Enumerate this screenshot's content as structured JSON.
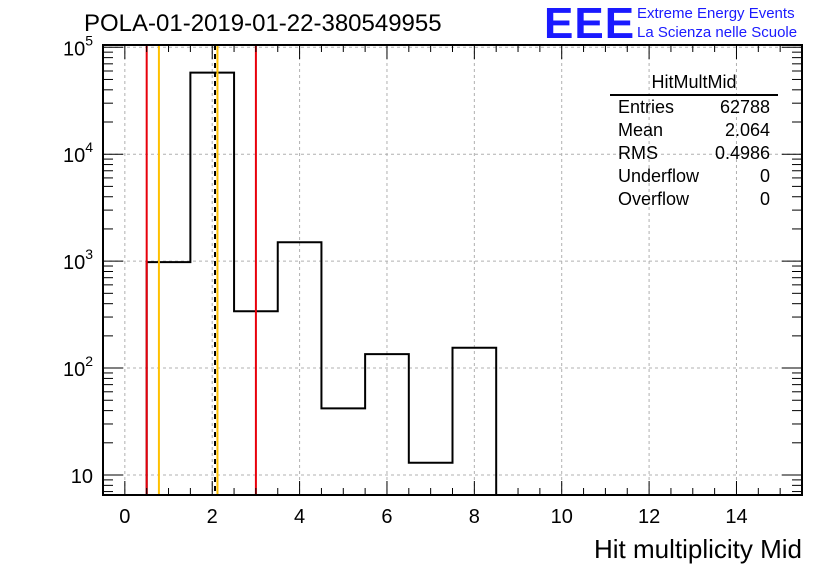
{
  "header": {
    "title": "POLA-01-2019-01-22-380549955"
  },
  "logo": {
    "mark": "EEE",
    "line1": "Extreme Energy Events",
    "line2": "La Scienza nelle Scuole",
    "color": "#1a1aff"
  },
  "stats": {
    "name": "HitMultMid",
    "rows": [
      {
        "label": "Entries",
        "value": "62788"
      },
      {
        "label": "Mean",
        "value": "2.064"
      },
      {
        "label": "RMS",
        "value": "0.4986"
      },
      {
        "label": "Underflow",
        "value": "0"
      },
      {
        "label": "Overflow",
        "value": "0"
      }
    ]
  },
  "chart_data": {
    "type": "bar",
    "histogram": true,
    "xlabel": "Hit multiplicity Mid",
    "xlim": [
      -0.5,
      15.5
    ],
    "ylim": [
      6.5,
      105000
    ],
    "yscale": "log",
    "grid": true,
    "bin_edges": [
      0.5,
      1.5,
      2.5,
      3.5,
      4.5,
      5.5,
      6.5,
      7.5,
      8.5
    ],
    "values": [
      980,
      58000,
      340,
      1500,
      42,
      135,
      13,
      155
    ],
    "x_ticks": [
      "0",
      "2",
      "4",
      "6",
      "8",
      "10",
      "12",
      "14"
    ],
    "x_tick_values": [
      0,
      2,
      4,
      6,
      8,
      10,
      12,
      14
    ],
    "y_ticks": [
      {
        "value": 10,
        "base": "10",
        "exp": ""
      },
      {
        "value": 100,
        "base": "10",
        "exp": "2"
      },
      {
        "value": 1000,
        "base": "10",
        "exp": "3"
      },
      {
        "value": 10000,
        "base": "10",
        "exp": "4"
      },
      {
        "value": 100000,
        "base": "10",
        "exp": "5"
      }
    ],
    "vertical_lines": [
      {
        "x": 0.5,
        "color": "#e8000b",
        "style": "solid"
      },
      {
        "x": 0.78,
        "color": "#ffc000",
        "style": "solid"
      },
      {
        "x": 2.064,
        "color": "#000000",
        "style": "dashed"
      },
      {
        "x": 2.12,
        "color": "#ffc000",
        "style": "solid"
      },
      {
        "x": 3.0,
        "color": "#e8000b",
        "style": "solid"
      }
    ]
  }
}
